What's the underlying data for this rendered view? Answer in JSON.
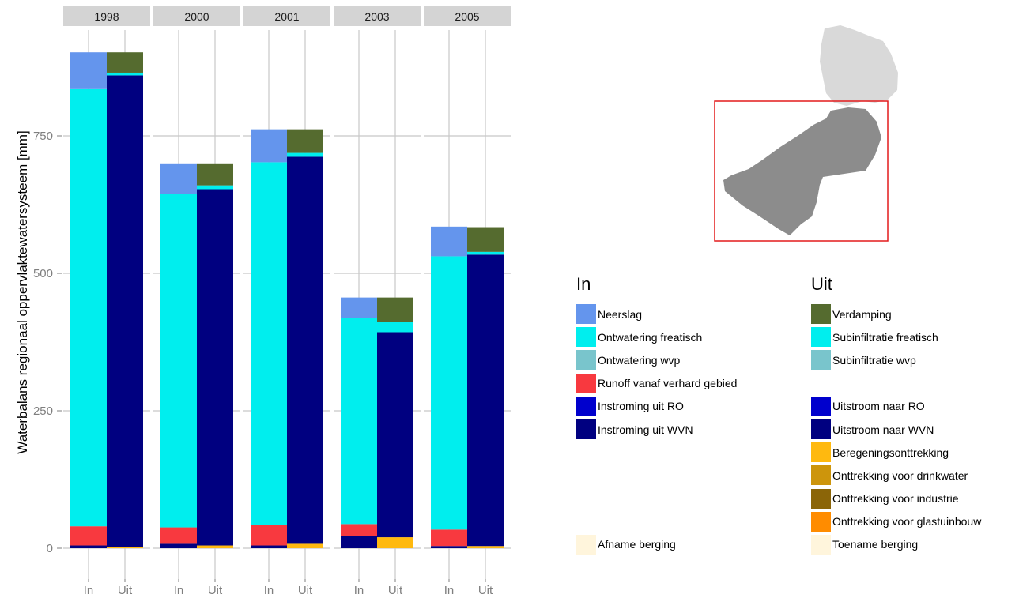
{
  "chart_data": {
    "type": "bar",
    "stacked": true,
    "facets": [
      "1998",
      "2000",
      "2001",
      "2003",
      "2005"
    ],
    "categories": [
      "In",
      "Uit"
    ],
    "ylabel": "Waterbalans regionaal oppervlaktewatersysteem [mm]",
    "ylim": [
      0,
      900
    ],
    "yticks": [
      0,
      250,
      500,
      750
    ],
    "grid": true,
    "bars": {
      "In": [
        {
          "Instroming uit WVN": 5,
          "Runoff vanaf verhard gebied": 35,
          "Ontwatering freatisch": 795,
          "Neerslag": 67
        },
        {
          "Instroming uit WVN": 8,
          "Runoff vanaf verhard gebied": 30,
          "Ontwatering freatisch": 607,
          "Neerslag": 55
        },
        {
          "Instroming uit WVN": 5,
          "Runoff vanaf verhard gebied": 37,
          "Ontwatering freatisch": 660,
          "Neerslag": 60
        },
        {
          "Instroming uit WVN": 22,
          "Runoff vanaf verhard gebied": 22,
          "Ontwatering freatisch": 375,
          "Neerslag": 37
        },
        {
          "Instroming uit WVN": 4,
          "Runoff vanaf verhard gebied": 30,
          "Ontwatering freatisch": 497,
          "Neerslag": 54
        }
      ],
      "Uit": [
        {
          "Beregeningsonttrekking": 2,
          "Uitstroom naar WVN": 858,
          "Subinfiltratie freatisch": 5,
          "Verdamping": 37
        },
        {
          "Beregeningsonttrekking": 5,
          "Uitstroom naar WVN": 648,
          "Subinfiltratie freatisch": 7,
          "Verdamping": 40
        },
        {
          "Beregeningsonttrekking": 8,
          "Uitstroom naar WVN": 704,
          "Subinfiltratie freatisch": 7,
          "Verdamping": 43
        },
        {
          "Beregeningsonttrekking": 20,
          "Uitstroom naar WVN": 373,
          "Subinfiltratie freatisch": 18,
          "Verdamping": 45
        },
        {
          "Beregeningsonttrekking": 4,
          "Uitstroom naar WVN": 530,
          "Subinfiltratie freatisch": 5,
          "Verdamping": 45
        }
      ]
    },
    "stack_order": {
      "In": [
        "Instroming uit WVN",
        "Runoff vanaf verhard gebied",
        "Ontwatering freatisch",
        "Neerslag"
      ],
      "Uit": [
        "Beregeningsonttrekking",
        "Uitstroom naar WVN",
        "Subinfiltratie freatisch",
        "Verdamping"
      ]
    },
    "legend_placement": "right"
  },
  "legend": {
    "in": {
      "title": "In",
      "items": [
        {
          "label": "Neerslag",
          "color": "#6495ed"
        },
        {
          "label": "Ontwatering freatisch",
          "color": "#00eeee"
        },
        {
          "label": "Ontwatering wvp",
          "color": "#79c5cc"
        },
        {
          "label": "Runoff vanaf verhard gebied",
          "color": "#f8393f"
        },
        {
          "label": "Instroming uit RO",
          "color": "#0000cd"
        },
        {
          "label": "Instroming uit WVN",
          "color": "#000080"
        },
        {
          "label": "",
          "color": ""
        },
        {
          "label": "",
          "color": ""
        },
        {
          "label": "",
          "color": ""
        },
        {
          "label": "",
          "color": ""
        },
        {
          "label": "Afname berging",
          "color": "#fff5dc"
        }
      ]
    },
    "uit": {
      "title": "Uit",
      "items": [
        {
          "label": "Verdamping",
          "color": "#556b2f"
        },
        {
          "label": "Subinfiltratie freatisch",
          "color": "#00eeee"
        },
        {
          "label": "Subinfiltratie wvp",
          "color": "#79c5cc"
        },
        {
          "label": "",
          "color": ""
        },
        {
          "label": "Uitstroom naar RO",
          "color": "#0000cd"
        },
        {
          "label": "Uitstroom naar WVN",
          "color": "#000080"
        },
        {
          "label": "Beregeningsonttrekking",
          "color": "#ffb90f"
        },
        {
          "label": "Onttrekking voor drinkwater",
          "color": "#cd950c"
        },
        {
          "label": "Onttrekking voor industrie",
          "color": "#8b6508"
        },
        {
          "label": "Onttrekking voor glastuinbouw",
          "color": "#ff8c00"
        },
        {
          "label": "Toename berging",
          "color": "#fff5dc"
        }
      ]
    }
  },
  "map": {
    "region_color": "#8c8c8c",
    "other_color": "#d9d9d9",
    "box_color": "#e31a1c"
  },
  "colors": {
    "strip_background": "#d4d4d4",
    "gridline": "#c8c8c8",
    "tick_label": "#7f7f7f"
  }
}
